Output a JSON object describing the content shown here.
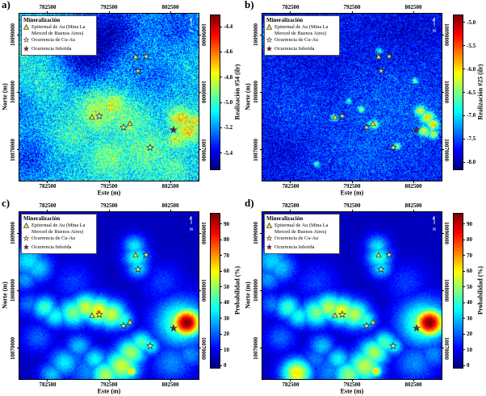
{
  "legend": {
    "title": "Mineralización",
    "items": [
      {
        "marker": "triangle-yellow",
        "label": "Epitermal de Au (Mina La Merced de Buenos Aires)"
      },
      {
        "marker": "star-open",
        "label": "Ocurrencia de Cu-Au"
      },
      {
        "marker": "star-filled",
        "label": "Ocurrencia Inferida"
      }
    ]
  },
  "compass": {
    "label": "N"
  },
  "colors": {
    "triangle_fill": "#f2e04a",
    "star_open_fill": "#fdf6c3",
    "star_filled_fill": "#7a1e46",
    "marker_edge": "#2b2b1e",
    "frame": "#000000",
    "colormap": "jet"
  },
  "markers": {
    "note": "occurrence locations in percent of map width/height, same on all four panels",
    "epitermal": [
      [
        65,
        25.5
      ],
      [
        40.5,
        62
      ],
      [
        61.5,
        65.5
      ]
    ],
    "cu_au": [
      [
        70.5,
        25.5
      ],
      [
        66,
        34.5
      ],
      [
        44.5,
        61.5
      ],
      [
        58,
        68
      ],
      [
        73,
        80
      ]
    ],
    "inferida": [
      [
        86,
        69.5
      ]
    ]
  },
  "chart_data": [
    {
      "id": "a",
      "panel_label": "a)",
      "type": "heatmap",
      "x_label": "Este (m)",
      "y_label": "Norte (m)",
      "x_ticks": [
        "782500",
        "792500",
        "802500"
      ],
      "y_ticks": [
        "10090000",
        "10080000",
        "10070000"
      ],
      "x_range": [
        777900,
        807100
      ],
      "y_range": [
        10064600,
        10093700
      ],
      "grid": false,
      "colorbar": {
        "label": "Realización #54 (ilr)",
        "ticks": [
          "-4.4",
          "-4.6",
          "-4.8",
          "-5.0",
          "-5.2",
          "-5.4"
        ],
        "tick_values": [
          -4.4,
          -4.6,
          -4.8,
          -5.0,
          -5.2,
          -5.4
        ],
        "vmax": -4.31,
        "vmin": -5.53
      },
      "field": {
        "kind": "speckle",
        "seed": 11,
        "base": 0.33,
        "noise": 0.3,
        "spike_p": 0.02,
        "spike_amp": 0.3,
        "spike_floor": 0.45,
        "blobs": [
          [
            45,
            58,
            9,
            0.22
          ],
          [
            52,
            55,
            6,
            0.24
          ],
          [
            60,
            64,
            9,
            0.15
          ],
          [
            90,
            63,
            5,
            0.3
          ],
          [
            94,
            70,
            5,
            0.3
          ],
          [
            97,
            64,
            3,
            0.3
          ],
          [
            88,
            75,
            4,
            0.25
          ],
          [
            70,
            82,
            11,
            0.14
          ],
          [
            50,
            86,
            9,
            0.16
          ],
          [
            30,
            72,
            8,
            0.1
          ],
          [
            85,
            92,
            7,
            0.12
          ],
          [
            15,
            38,
            11,
            0.07
          ],
          [
            0,
            25,
            6,
            0.08
          ],
          [
            42,
            14,
            14,
            -0.2
          ],
          [
            36,
            28,
            10,
            -0.16
          ],
          [
            55,
            8,
            10,
            -0.12
          ],
          [
            88,
            7,
            10,
            -0.14
          ],
          [
            75,
            38,
            9,
            -0.1
          ],
          [
            3,
            86,
            10,
            -0.16
          ],
          [
            0,
            55,
            7,
            -0.1
          ]
        ]
      }
    },
    {
      "id": "b",
      "panel_label": "b)",
      "type": "heatmap",
      "x_label": "Este (m)",
      "y_label": "Norte (m)",
      "x_ticks": [
        "782500",
        "792500",
        "802500"
      ],
      "y_ticks": [
        "10090000",
        "10080000",
        "10070000"
      ],
      "x_range": [
        777900,
        807100
      ],
      "y_range": [
        10064600,
        10093700
      ],
      "grid": false,
      "colorbar": {
        "label": "Realización #25 (ilr)",
        "ticks": [
          "-5.0",
          "-5.5",
          "-6.0",
          "-6.5",
          "-7.0",
          "-7.5",
          "-8.0"
        ],
        "tick_values": [
          -5.0,
          -5.5,
          -6.0,
          -6.5,
          -7.0,
          -7.5,
          -8.0
        ],
        "vmax": -4.85,
        "vmin": -8.15
      },
      "field": {
        "kind": "speckle",
        "seed": 22,
        "base": 0.14,
        "noise": 0.24,
        "spike_p": 0.012,
        "spike_amp": 0.35,
        "spike_floor": 0.17,
        "blobs": [
          [
            70,
            60,
            22,
            0.07
          ],
          [
            55,
            80,
            18,
            0.06
          ],
          [
            88,
            62,
            12,
            0.08
          ],
          [
            20,
            55,
            15,
            0.05
          ],
          [
            3,
            15,
            6,
            0.1
          ],
          [
            92,
            62,
            3,
            0.5
          ],
          [
            95,
            66,
            2.5,
            0.52
          ],
          [
            90,
            70,
            2.5,
            0.46
          ],
          [
            95,
            72,
            2,
            0.45
          ],
          [
            88,
            58,
            2.5,
            0.45
          ],
          [
            62,
            66,
            2,
            0.45
          ],
          [
            40,
            62,
            1.5,
            0.4
          ],
          [
            55,
            57,
            1.5,
            0.38
          ],
          [
            75,
            79,
            1.5,
            0.4
          ],
          [
            85,
            40,
            1.3,
            0.34
          ],
          [
            65,
            22,
            1.3,
            0.3
          ],
          [
            30,
            90,
            1.3,
            0.3
          ],
          [
            48,
            52,
            1.2,
            0.32
          ],
          [
            80,
            8,
            14,
            -0.05
          ],
          [
            30,
            25,
            18,
            -0.04
          ],
          [
            10,
            80,
            10,
            -0.04
          ]
        ]
      }
    },
    {
      "id": "c",
      "panel_label": "c)",
      "type": "heatmap",
      "x_label": "Este (m)",
      "y_label": "Norte (m)",
      "x_ticks": [
        "782500",
        "792500",
        "802500"
      ],
      "y_ticks": [
        "10090000",
        "10080000",
        "10070000"
      ],
      "x_range": [
        777900,
        807100
      ],
      "y_range": [
        10064600,
        10093700
      ],
      "grid": false,
      "colorbar": {
        "label": "Probabilidad (%)",
        "ticks": [
          "90",
          "80",
          "70",
          "60",
          "50",
          "40",
          "30",
          "20",
          "10",
          "0"
        ],
        "tick_values": [
          90,
          80,
          70,
          60,
          50,
          40,
          30,
          20,
          10,
          0
        ],
        "vmax": 96.5,
        "vmin": -1.5
      },
      "field": {
        "kind": "smooth",
        "seed": 33,
        "base": 0.06,
        "noise": 0.07,
        "blobs": [
          [
            5,
            29,
            7,
            0.3
          ],
          [
            10,
            33,
            6,
            0.28
          ],
          [
            3,
            40,
            5,
            0.22
          ],
          [
            64,
            20,
            4.5,
            0.3
          ],
          [
            65,
            27,
            5,
            0.36
          ],
          [
            66,
            33,
            4.5,
            0.3
          ],
          [
            14,
            57,
            5,
            0.38
          ],
          [
            20,
            62,
            5,
            0.34
          ],
          [
            30,
            60,
            6,
            0.44
          ],
          [
            37,
            57,
            6,
            0.52
          ],
          [
            44,
            59,
            6,
            0.58
          ],
          [
            44,
            59.5,
            2.2,
            0.7
          ],
          [
            51,
            61,
            6,
            0.52
          ],
          [
            57,
            64,
            4.5,
            0.38
          ],
          [
            93,
            66,
            6,
            0.95
          ],
          [
            90,
            66,
            10,
            0.45
          ],
          [
            85,
            71,
            7,
            0.25
          ],
          [
            68,
            78,
            5,
            0.4
          ],
          [
            62,
            84,
            6,
            0.48
          ],
          [
            57,
            92,
            7,
            0.52
          ],
          [
            62,
            95,
            2.5,
            0.62
          ],
          [
            48,
            97,
            6,
            0.48
          ],
          [
            42,
            88,
            5,
            0.32
          ],
          [
            33,
            80,
            5,
            0.26
          ],
          [
            25,
            90,
            6,
            0.3
          ],
          [
            18,
            97,
            5,
            0.26
          ],
          [
            73,
            80,
            4,
            0.34
          ],
          [
            30,
            42,
            8,
            0.12
          ],
          [
            80,
            42,
            8,
            0.12
          ],
          [
            10,
            75,
            6,
            0.16
          ],
          [
            5,
            55,
            5,
            0.18
          ],
          [
            85,
            90,
            8,
            0.2
          ],
          [
            95,
            85,
            6,
            0.2
          ],
          [
            38,
            95,
            8,
            0.2
          ],
          [
            30,
            88,
            6,
            0.18
          ]
        ]
      }
    },
    {
      "id": "d",
      "panel_label": "d)",
      "type": "heatmap",
      "x_label": "Este (m)",
      "y_label": "Norte (m)",
      "x_ticks": [
        "782500",
        "792500",
        "802500"
      ],
      "y_ticks": [
        "10090000",
        "10080000",
        "10070000"
      ],
      "x_range": [
        777900,
        807100
      ],
      "y_range": [
        10064600,
        10093700
      ],
      "grid": false,
      "colorbar": {
        "label": "Probabilidad (%)",
        "ticks": [
          "90",
          "80",
          "70",
          "60",
          "50",
          "40",
          "30",
          "20",
          "10",
          "0"
        ],
        "tick_values": [
          90,
          80,
          70,
          60,
          50,
          40,
          30,
          20,
          10,
          0
        ],
        "vmax": 96.5,
        "vmin": -1.5
      },
      "field": {
        "kind": "smooth",
        "seed": 44,
        "base": 0.06,
        "noise": 0.07,
        "blobs": [
          [
            5,
            29,
            7,
            0.28
          ],
          [
            10,
            33,
            6,
            0.26
          ],
          [
            3,
            40,
            5,
            0.22
          ],
          [
            64,
            20,
            4.5,
            0.3
          ],
          [
            65,
            27,
            5,
            0.36
          ],
          [
            66,
            33,
            4.5,
            0.3
          ],
          [
            14,
            57,
            5,
            0.38
          ],
          [
            20,
            62,
            5,
            0.34
          ],
          [
            30,
            60,
            6,
            0.44
          ],
          [
            37,
            57,
            6,
            0.5
          ],
          [
            44,
            59,
            6,
            0.55
          ],
          [
            44,
            59.5,
            2,
            0.62
          ],
          [
            51,
            61,
            6,
            0.5
          ],
          [
            57,
            64,
            4.5,
            0.38
          ],
          [
            93,
            66,
            6,
            0.95
          ],
          [
            90,
            66,
            10,
            0.45
          ],
          [
            85,
            71,
            7,
            0.25
          ],
          [
            68,
            78,
            5,
            0.4
          ],
          [
            62,
            84,
            6,
            0.48
          ],
          [
            57,
            92,
            7,
            0.5
          ],
          [
            63,
            95,
            2.5,
            0.62
          ],
          [
            48,
            97,
            6,
            0.46
          ],
          [
            42,
            88,
            5,
            0.32
          ],
          [
            33,
            80,
            5,
            0.26
          ],
          [
            19,
            96,
            6,
            0.58
          ],
          [
            19,
            99,
            5,
            0.55
          ],
          [
            73,
            80,
            4,
            0.34
          ],
          [
            30,
            42,
            8,
            0.12
          ],
          [
            80,
            42,
            8,
            0.12
          ],
          [
            10,
            75,
            6,
            0.16
          ],
          [
            5,
            55,
            5,
            0.18
          ],
          [
            85,
            90,
            8,
            0.2
          ],
          [
            95,
            85,
            6,
            0.2
          ],
          [
            38,
            95,
            8,
            0.2
          ],
          [
            30,
            88,
            6,
            0.18
          ]
        ]
      }
    }
  ]
}
